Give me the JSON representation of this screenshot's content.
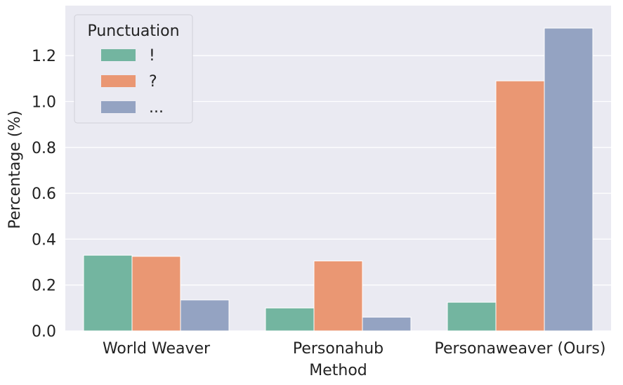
{
  "chart_data": {
    "type": "bar",
    "categories": [
      "World Weaver",
      "Personahub",
      "Personaweaver (Ours)"
    ],
    "series": [
      {
        "name": "!",
        "values": [
          0.33,
          0.1,
          0.125
        ],
        "color": "#73b5a0"
      },
      {
        "name": "?",
        "values": [
          0.325,
          0.305,
          1.09
        ],
        "color": "#ea9773"
      },
      {
        "name": "...",
        "values": [
          0.135,
          0.06,
          1.32
        ],
        "color": "#94a3c2"
      }
    ],
    "title": "",
    "xlabel": "Method",
    "ylabel": "Percentage (%)",
    "ylim": [
      0,
      1.32
    ],
    "yticks": [
      "0.0",
      "0.2",
      "0.4",
      "0.6",
      "0.8",
      "1.0",
      "1.2"
    ],
    "legend": {
      "title": "Punctuation",
      "placement": "top-left"
    },
    "grid": true,
    "colors": {
      "background": "#eaeaf2",
      "grid": "#ffffff"
    }
  }
}
